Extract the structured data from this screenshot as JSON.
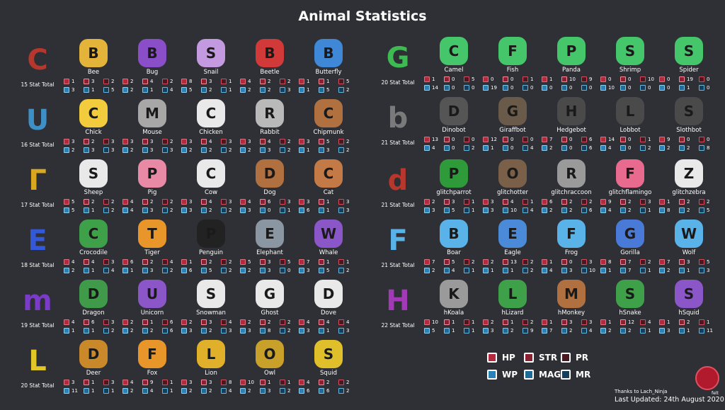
{
  "title": "Animal Statistics",
  "ranks": [
    {
      "glyph": "C",
      "total": "15 Stat Total",
      "color": "#b8372c",
      "icon_name": "rank-c-icon"
    },
    {
      "glyph": "U",
      "total": "16 Stat Total",
      "color": "#3f8fc7",
      "icon_name": "rank-u-icon"
    },
    {
      "glyph": "Γ",
      "total": "17 Stat Total",
      "color": "#d9a820",
      "icon_name": "rank-r-icon"
    },
    {
      "glyph": "E",
      "total": "18 Stat Total",
      "color": "#3358d8",
      "icon_name": "rank-e-icon"
    },
    {
      "glyph": "m",
      "total": "19 Stat Total",
      "color": "#7a3cc8",
      "icon_name": "rank-m-icon"
    },
    {
      "glyph": "L",
      "total": "20 Stat Total",
      "color": "#e0c628",
      "icon_name": "rank-l-icon"
    },
    {
      "glyph": "G",
      "total": "20 Stat Total",
      "color": "#3dbb52",
      "icon_name": "rank-g-icon"
    },
    {
      "glyph": "b",
      "total": "21 Stat Total",
      "color": "#7a7a7a",
      "icon_name": "rank-b-icon"
    },
    {
      "glyph": "d",
      "total": "21 Stat Total",
      "color": "#b8372c",
      "icon_name": "rank-d-icon"
    },
    {
      "glyph": "F",
      "total": "21 Stat Total",
      "color": "#5ab3e8",
      "icon_name": "rank-f-icon"
    },
    {
      "glyph": "H",
      "total": "22 Stat Total",
      "color": "#a23ab8",
      "icon_name": "rank-h-icon"
    }
  ],
  "animals": [
    {
      "name": "Bee",
      "icon": "bee-icon",
      "color": "#e3b33a",
      "stats": [
        1,
        3,
        2,
        3,
        1,
        5
      ]
    },
    {
      "name": "Bug",
      "icon": "bug-icon",
      "color": "#8b4ec9",
      "stats": [
        2,
        4,
        2,
        2,
        1,
        4
      ]
    },
    {
      "name": "Snail",
      "icon": "snail-icon",
      "color": "#c39ae0",
      "stats": [
        8,
        3,
        1,
        5,
        2,
        1
      ]
    },
    {
      "name": "Beetle",
      "icon": "beetle-icon",
      "color": "#d23a3a",
      "stats": [
        4,
        2,
        2,
        2,
        2,
        3
      ]
    },
    {
      "name": "Butterfly",
      "icon": "butterfly-icon",
      "color": "#3f88d8",
      "stats": [
        1,
        1,
        5,
        1,
        5,
        2
      ]
    },
    {
      "name": "Camel",
      "icon": "camel-icon",
      "color": "#45c66a",
      "stats": [
        1,
        0,
        5,
        14,
        0,
        0
      ]
    },
    {
      "name": "Fish",
      "icon": "fish-icon",
      "color": "#45c66a",
      "stats": [
        0,
        0,
        1,
        19,
        0,
        0
      ]
    },
    {
      "name": "Panda",
      "icon": "panda-icon",
      "color": "#45c66a",
      "stats": [
        1,
        10,
        9,
        0,
        0,
        0
      ]
    },
    {
      "name": "Shrimp",
      "icon": "shrimp-icon",
      "color": "#45c66a",
      "stats": [
        0,
        0,
        10,
        10,
        0,
        0
      ]
    },
    {
      "name": "Spider",
      "icon": "spider-icon",
      "color": "#45c66a",
      "stats": [
        0,
        19,
        0,
        0,
        1,
        0
      ]
    },
    {
      "name": "Chick",
      "icon": "chick-icon",
      "color": "#f2cc3c",
      "stats": [
        3,
        2,
        3,
        2,
        3,
        3
      ]
    },
    {
      "name": "Mouse",
      "icon": "mouse-icon",
      "color": "#a7a7a7",
      "stats": [
        3,
        3,
        2,
        2,
        3,
        3
      ]
    },
    {
      "name": "Chicken",
      "icon": "chicken-icon",
      "color": "#e9e9e9",
      "stats": [
        3,
        4,
        3,
        2,
        2,
        2
      ]
    },
    {
      "name": "Rabbit",
      "icon": "rabbit-icon",
      "color": "#b9b9b9",
      "stats": [
        3,
        4,
        2,
        2,
        3,
        2
      ]
    },
    {
      "name": "Chipmunk",
      "icon": "chipmunk-icon",
      "color": "#b07040",
      "stats": [
        3,
        5,
        2,
        1,
        3,
        2
      ]
    },
    {
      "name": "Dinobot",
      "icon": "dinobot-icon",
      "color": "#555555",
      "stats": [
        13,
        0,
        0,
        4,
        0,
        2
      ]
    },
    {
      "name": "Giraffbot",
      "icon": "giraffbot-icon",
      "color": "#6a5a4a",
      "stats": [
        12,
        0,
        0,
        1,
        0,
        4
      ]
    },
    {
      "name": "Hedgebot",
      "icon": "hedgebot-icon",
      "color": "#4a4a4a",
      "stats": [
        7,
        0,
        6,
        2,
        0,
        6
      ]
    },
    {
      "name": "Lobbot",
      "icon": "lobbot-icon",
      "color": "#4a4a4a",
      "stats": [
        14,
        0,
        1,
        4,
        0,
        2
      ]
    },
    {
      "name": "Slothbot",
      "icon": "slothbot-icon",
      "color": "#4a4a4a",
      "stats": [
        9,
        0,
        0,
        2,
        2,
        8
      ]
    },
    {
      "name": "Sheep",
      "icon": "sheep-icon",
      "color": "#e9e9e9",
      "stats": [
        5,
        2,
        2,
        5,
        1,
        2
      ]
    },
    {
      "name": "Pig",
      "icon": "pig-icon",
      "color": "#e88aa6",
      "stats": [
        4,
        2,
        2,
        4,
        3,
        2
      ]
    },
    {
      "name": "Cow",
      "icon": "cow-icon",
      "color": "#e9e9e9",
      "stats": [
        3,
        4,
        3,
        3,
        2,
        2
      ]
    },
    {
      "name": "Dog",
      "icon": "dog-icon",
      "color": "#b07040",
      "stats": [
        4,
        6,
        3,
        3,
        0,
        1
      ]
    },
    {
      "name": "Cat",
      "icon": "cat-icon",
      "color": "#c37a46",
      "stats": [
        3,
        1,
        3,
        6,
        1,
        3
      ]
    },
    {
      "name": "glitchparrot",
      "icon": "glitchparrot-icon",
      "color": "#2f9a3a",
      "stats": [
        2,
        3,
        1,
        3,
        5,
        1
      ]
    },
    {
      "name": "glitchotter",
      "icon": "glitchotter-icon",
      "color": "#7a6048",
      "stats": [
        3,
        4,
        1,
        3,
        10,
        4
      ]
    },
    {
      "name": "glitchraccoon",
      "icon": "glitchraccoon-icon",
      "color": "#9a9a9a",
      "stats": [
        6,
        2,
        2,
        2,
        2,
        6
      ]
    },
    {
      "name": "glitchflamingo",
      "icon": "glitchflamingo-icon",
      "color": "#e86a8e",
      "stats": [
        9,
        2,
        3,
        4,
        2,
        1
      ]
    },
    {
      "name": "glitchzebra",
      "icon": "glitchzebra-icon",
      "color": "#e9e9e9",
      "stats": [
        1,
        2,
        2,
        8,
        2,
        5
      ]
    },
    {
      "name": "Crocodile",
      "icon": "crocodile-icon",
      "color": "#3fa04a",
      "stats": [
        4,
        4,
        3,
        2,
        1,
        4
      ]
    },
    {
      "name": "Tiger",
      "icon": "tiger-icon",
      "color": "#e8962a",
      "stats": [
        6,
        2,
        4,
        1,
        3,
        2
      ]
    },
    {
      "name": "Penguin",
      "icon": "penguin-icon",
      "color": "#222222",
      "stats": [
        1,
        2,
        2,
        6,
        5,
        2
      ]
    },
    {
      "name": "Elephant",
      "icon": "elephant-icon",
      "color": "#8a96a2",
      "stats": [
        5,
        3,
        5,
        2,
        3,
        0
      ]
    },
    {
      "name": "Whale",
      "icon": "whale-icon",
      "color": "#8a56c8",
      "stats": [
        7,
        1,
        1,
        3,
        5,
        2
      ]
    },
    {
      "name": "Boar",
      "icon": "boar-icon",
      "color": "#5ab3e8",
      "stats": [
        7,
        5,
        2,
        2,
        4,
        1
      ]
    },
    {
      "name": "Eagle",
      "icon": "eagle-icon",
      "color": "#4a8ad8",
      "stats": [
        2,
        13,
        2,
        1,
        1,
        2
      ]
    },
    {
      "name": "Frog",
      "icon": "frog-icon",
      "color": "#5ab3e8",
      "stats": [
        1,
        0,
        3,
        4,
        3,
        10
      ]
    },
    {
      "name": "Gorilla",
      "icon": "gorilla-icon",
      "color": "#4a7ad8",
      "stats": [
        8,
        7,
        2,
        1,
        7,
        1
      ]
    },
    {
      "name": "Wolf",
      "icon": "wolf-icon",
      "color": "#5ab3e8",
      "stats": [
        7,
        3,
        5,
        2,
        1,
        3
      ]
    },
    {
      "name": "Dragon",
      "icon": "dragon-icon",
      "color": "#3f9a4a",
      "stats": [
        4,
        6,
        3,
        1,
        1,
        2
      ]
    },
    {
      "name": "Unicorn",
      "icon": "unicorn-icon",
      "color": "#8a56c8",
      "stats": [
        2,
        1,
        6,
        2,
        2,
        6
      ]
    },
    {
      "name": "Snowman",
      "icon": "snowman-icon",
      "color": "#e9e9e9",
      "stats": [
        2,
        3,
        4,
        3,
        2,
        3
      ]
    },
    {
      "name": "Ghost",
      "icon": "ghost-icon",
      "color": "#e9e9e9",
      "stats": [
        2,
        2,
        2,
        3,
        8,
        2
      ]
    },
    {
      "name": "Dove",
      "icon": "dove-icon",
      "color": "#e9e9e9",
      "stats": [
        4,
        4,
        4,
        3,
        1,
        3
      ]
    },
    {
      "name": "hKoala",
      "icon": "hkoala-icon",
      "color": "#9a9a9a",
      "stats": [
        10,
        1,
        1,
        5,
        1,
        1
      ]
    },
    {
      "name": "hLizard",
      "icon": "hlizard-icon",
      "color": "#3fa04a",
      "stats": [
        2,
        1,
        2,
        3,
        2,
        9
      ]
    },
    {
      "name": "hMonkey",
      "icon": "hmonkey-icon",
      "color": "#b07040",
      "stats": [
        1,
        3,
        3,
        7,
        2,
        4
      ]
    },
    {
      "name": "hSnake",
      "icon": "hsnake-icon",
      "color": "#3fa04a",
      "stats": [
        1,
        12,
        4,
        2,
        2,
        1
      ]
    },
    {
      "name": "hSquid",
      "icon": "hsquid-icon",
      "color": "#8a56c8",
      "stats": [
        1,
        2,
        1,
        3,
        1,
        11
      ]
    },
    {
      "name": "Deer",
      "icon": "deer-icon",
      "color": "#c9882a",
      "stats": [
        3,
        1,
        3,
        11,
        1,
        1
      ]
    },
    {
      "name": "Fox",
      "icon": "fox-icon",
      "color": "#e8962a",
      "stats": [
        4,
        9,
        1,
        2,
        4,
        1
      ]
    },
    {
      "name": "Lion",
      "icon": "lion-icon",
      "color": "#e0b02a",
      "stats": [
        3,
        3,
        8,
        2,
        2,
        4
      ]
    },
    {
      "name": "Owl",
      "icon": "owl-icon",
      "color": "#c9a02a",
      "stats": [
        10,
        1,
        1,
        2,
        3,
        2
      ]
    },
    {
      "name": "Squid",
      "icon": "squid-icon",
      "color": "#e0c02a",
      "stats": [
        4,
        2,
        2,
        6,
        6,
        2
      ]
    }
  ],
  "legend": [
    {
      "label": "HP",
      "icon": "hp-icon",
      "cls": "hp"
    },
    {
      "label": "STR",
      "icon": "str-icon",
      "cls": "str"
    },
    {
      "label": "PR",
      "icon": "pr-icon",
      "cls": "pr"
    },
    {
      "label": "WP",
      "icon": "wp-icon",
      "cls": "wp"
    },
    {
      "label": "MAG",
      "icon": "mag-icon",
      "cls": "mag"
    },
    {
      "label": "MR",
      "icon": "mr-icon",
      "cls": "mr"
    }
  ],
  "thanks": "Thanks to Lach_Ninja",
  "updated": "Last Updated: 24th August 2020",
  "avatar_label": "felt"
}
